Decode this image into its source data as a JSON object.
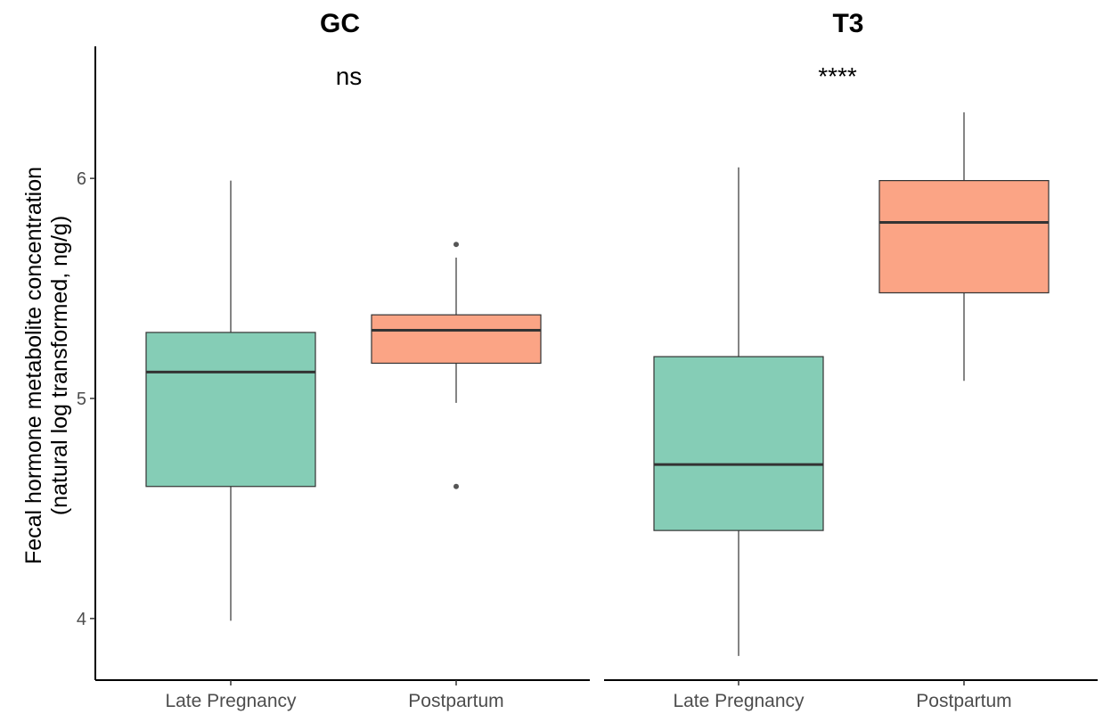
{
  "chart_data": {
    "type": "box",
    "ylabel": "Fecal hormone metabolite concentration\n(natural log transformed, ng/g)",
    "ylabel_line1": "Fecal hormone metabolite concentration",
    "ylabel_line2": "(natural log transformed, ng/g)",
    "yticks": [
      4,
      5,
      6
    ],
    "ylim": [
      3.72,
      6.6
    ],
    "categories": [
      "Late Pregnancy",
      "Postpartum"
    ],
    "colors": {
      "Late Pregnancy": "#85cdb6",
      "Postpartum": "#fba485"
    },
    "panels": [
      {
        "title": "GC",
        "significance": "ns",
        "boxes": [
          {
            "category": "Late Pregnancy",
            "min": 3.99,
            "q1": 4.6,
            "median": 5.12,
            "q3": 5.3,
            "max": 5.99,
            "outliers": []
          },
          {
            "category": "Postpartum",
            "min": 4.98,
            "q1": 5.16,
            "median": 5.31,
            "q3": 5.38,
            "max": 5.64,
            "outliers": [
              5.7,
              4.6
            ]
          }
        ]
      },
      {
        "title": "T3",
        "significance": "****",
        "boxes": [
          {
            "category": "Late Pregnancy",
            "min": 3.83,
            "q1": 4.4,
            "median": 4.7,
            "q3": 5.19,
            "max": 6.05,
            "outliers": []
          },
          {
            "category": "Postpartum",
            "min": 5.08,
            "q1": 5.48,
            "median": 5.8,
            "q3": 5.99,
            "max": 6.3,
            "outliers": []
          }
        ]
      }
    ]
  }
}
